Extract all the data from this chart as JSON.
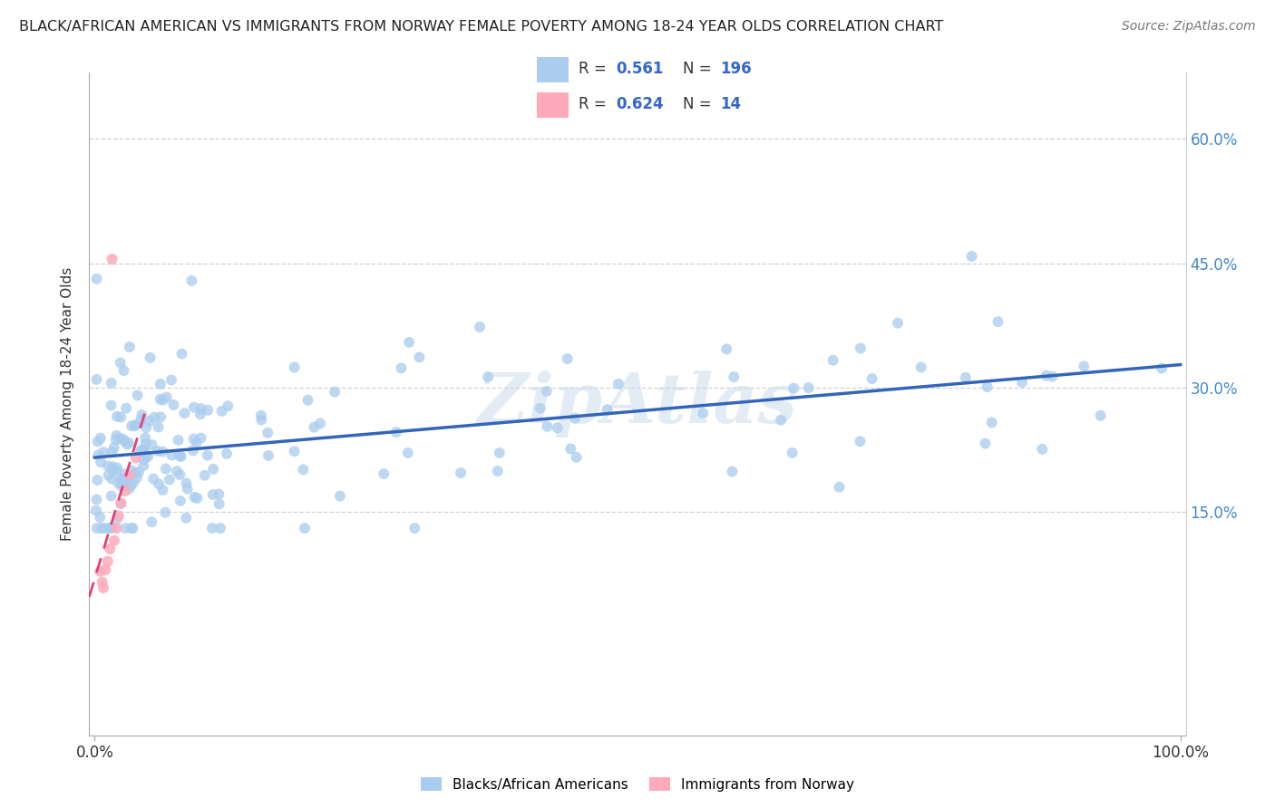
{
  "title": "BLACK/AFRICAN AMERICAN VS IMMIGRANTS FROM NORWAY FEMALE POVERTY AMONG 18-24 YEAR OLDS CORRELATION CHART",
  "source": "Source: ZipAtlas.com",
  "ylabel": "Female Poverty Among 18-24 Year Olds",
  "xlim": [
    -0.005,
    1.005
  ],
  "ylim": [
    -0.12,
    0.68
  ],
  "yticks": [
    0.15,
    0.3,
    0.45,
    0.6
  ],
  "xtick_vals": [
    0.0,
    1.0
  ],
  "xtick_labels": [
    "0.0%",
    "100.0%"
  ],
  "legend_R1": "0.561",
  "legend_N1": "196",
  "legend_R2": "0.624",
  "legend_N2": "14",
  "blue_color": "#aaccee",
  "pink_color": "#ffaabb",
  "blue_line_color": "#3366bb",
  "pink_line_color": "#dd4477",
  "watermark": "ZipAtlas",
  "background_color": "#ffffff",
  "grid_color": "#cccccc",
  "tick_color": "#4488cc",
  "label_color": "#333333"
}
